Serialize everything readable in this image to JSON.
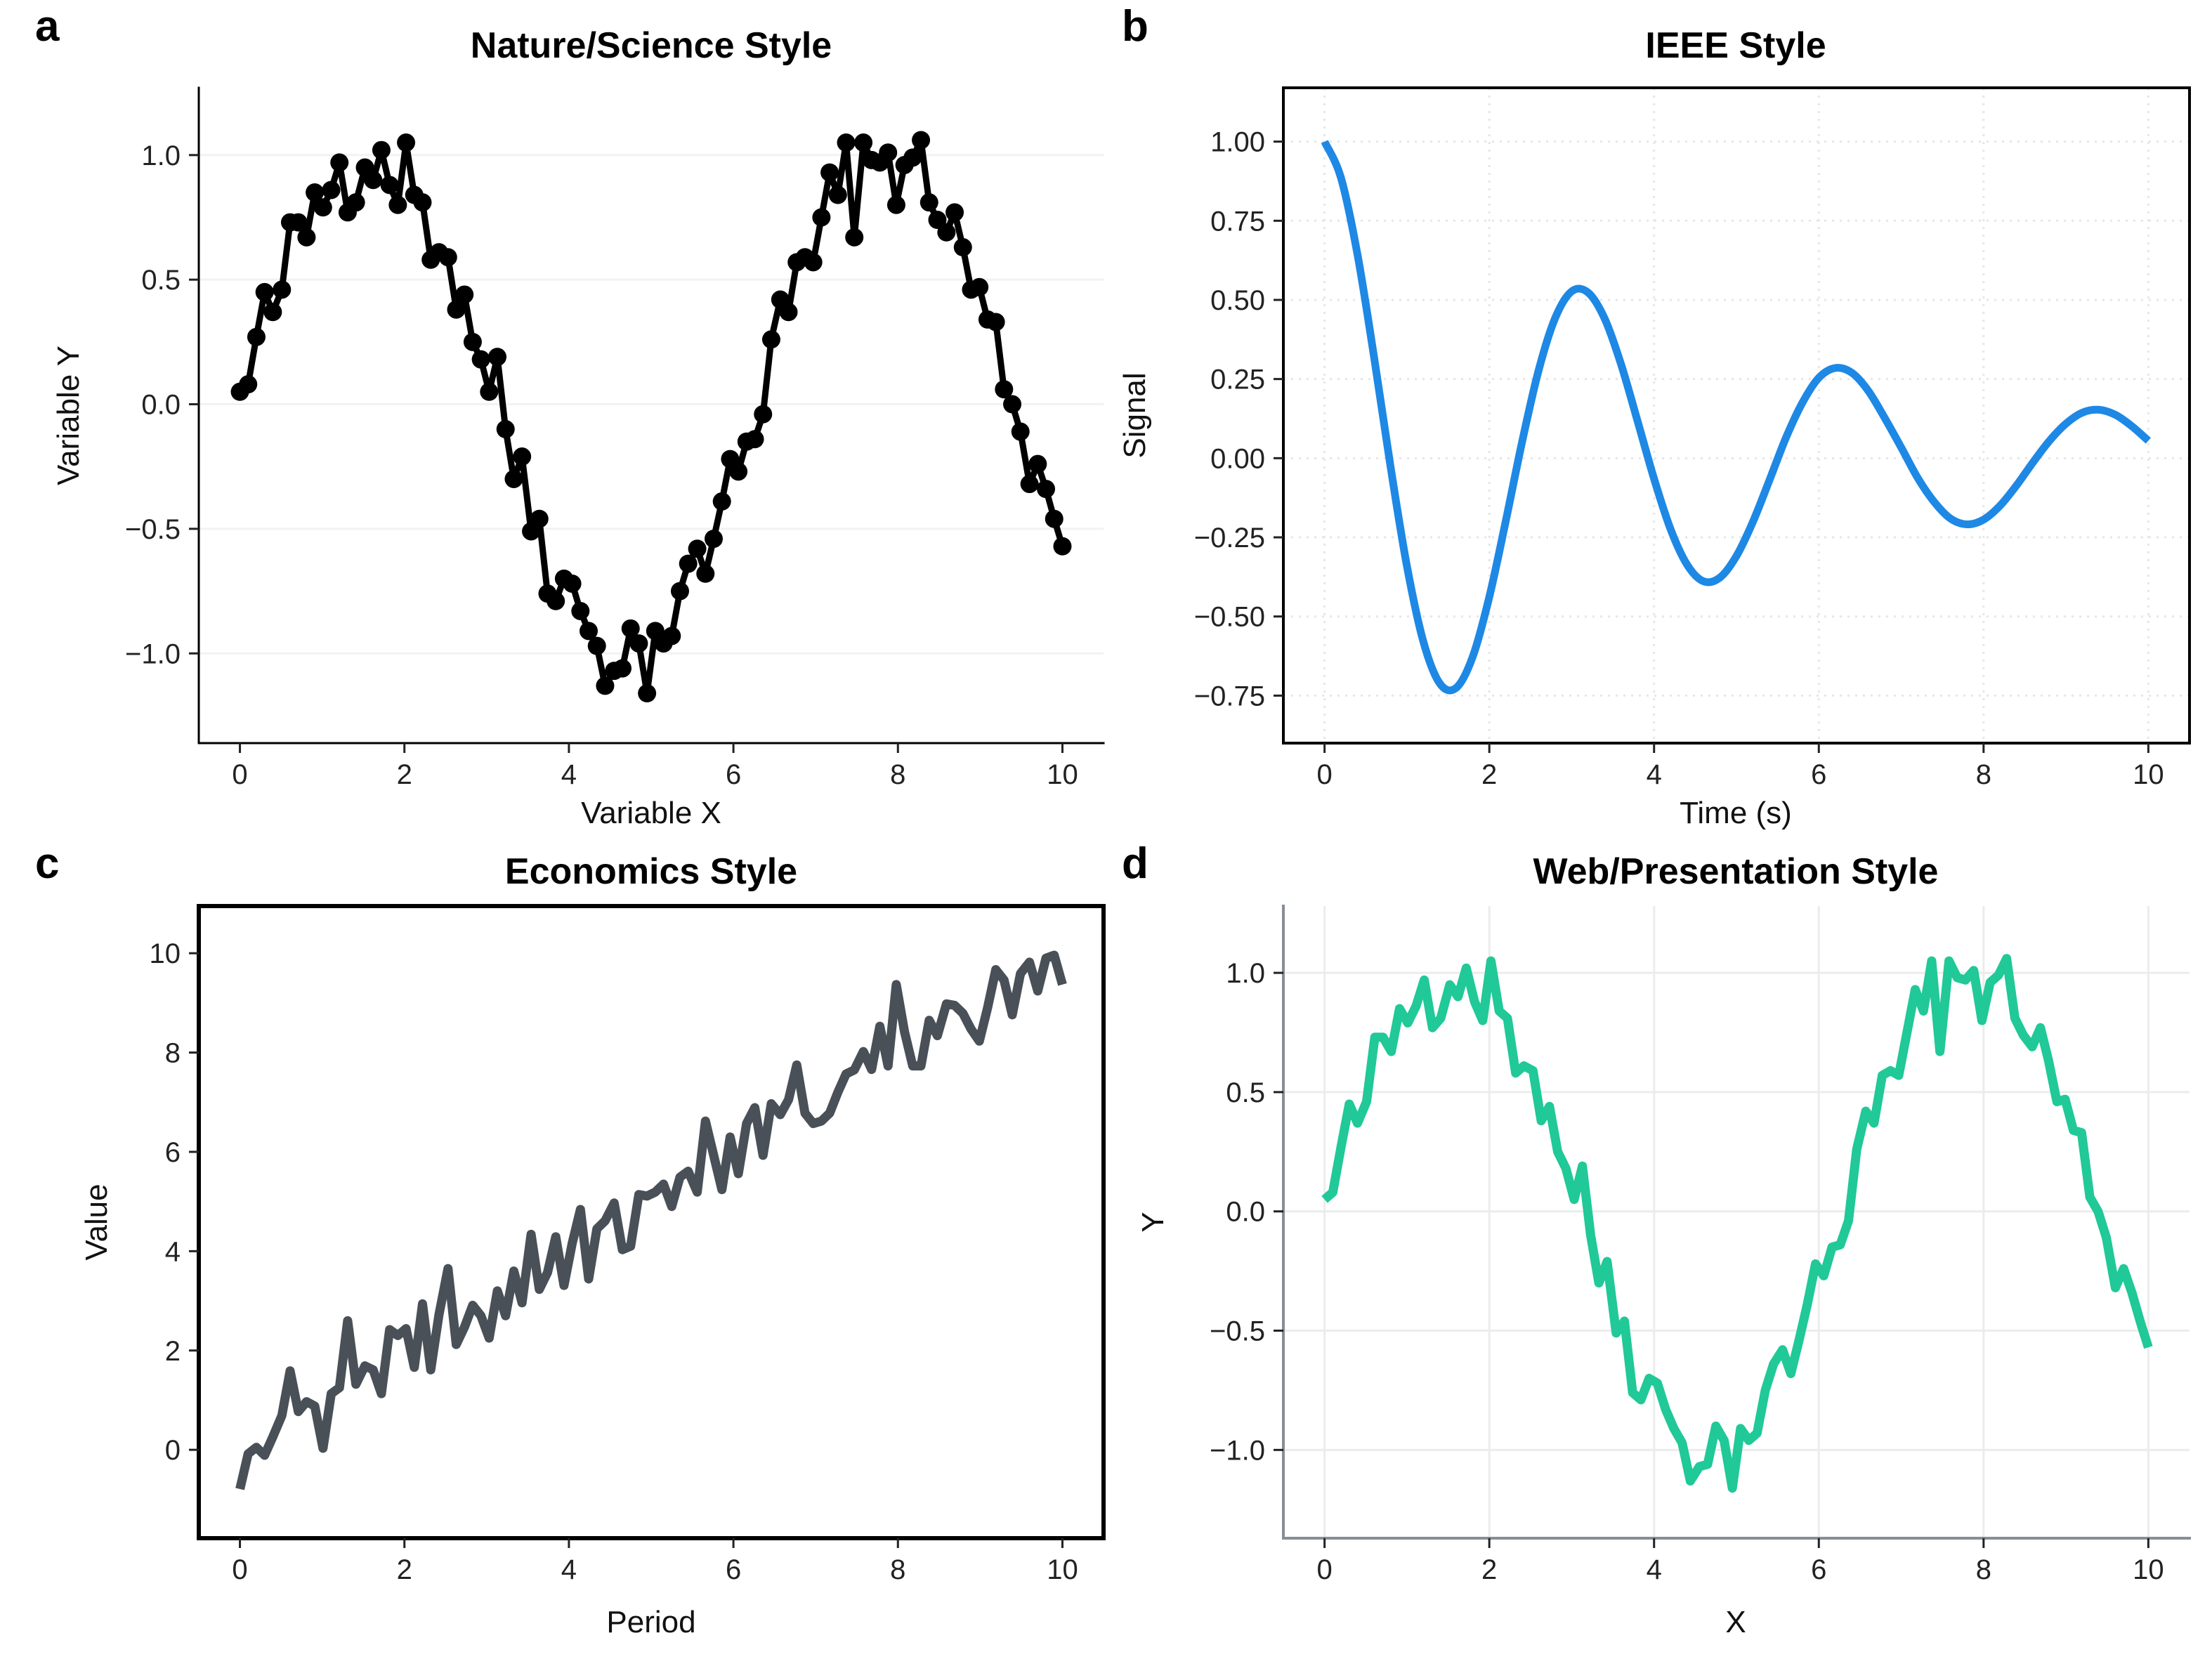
{
  "chart_data": [
    {
      "panel_letter": "a",
      "type": "line",
      "title": "Nature/Science Style",
      "xlabel": "Variable X",
      "ylabel": "Variable Y",
      "xlim": [
        -0.5,
        10.5
      ],
      "ylim": [
        -1.36,
        1.27
      ],
      "xticks": [
        0,
        2,
        4,
        6,
        8,
        10
      ],
      "xtick_labels": [
        "0",
        "2",
        "4",
        "6",
        "8",
        "10"
      ],
      "yticks": [
        -1.0,
        -0.5,
        0.0,
        0.5,
        1.0
      ],
      "ytick_labels": [
        "−1.0",
        "−0.5",
        "0.0",
        "0.5",
        "1.0"
      ],
      "grid": "horizontal, faint",
      "markers": true,
      "color": "#000000",
      "x": [
        0,
        0.1,
        0.2,
        0.3,
        0.4,
        0.51,
        0.61,
        0.71,
        0.81,
        0.91,
        1.01,
        1.11,
        1.21,
        1.31,
        1.41,
        1.52,
        1.62,
        1.72,
        1.82,
        1.92,
        2.02,
        2.12,
        2.22,
        2.32,
        2.42,
        2.53,
        2.63,
        2.73,
        2.83,
        2.93,
        3.03,
        3.13,
        3.23,
        3.33,
        3.43,
        3.54,
        3.64,
        3.74,
        3.84,
        3.94,
        4.04,
        4.14,
        4.24,
        4.34,
        4.44,
        4.55,
        4.65,
        4.75,
        4.85,
        4.95,
        5.05,
        5.15,
        5.25,
        5.35,
        5.45,
        5.56,
        5.66,
        5.76,
        5.86,
        5.96,
        6.06,
        6.16,
        6.26,
        6.36,
        6.46,
        6.57,
        6.67,
        6.77,
        6.87,
        6.97,
        7.07,
        7.17,
        7.27,
        7.37,
        7.47,
        7.58,
        7.68,
        7.78,
        7.88,
        7.98,
        8.08,
        8.18,
        8.28,
        8.38,
        8.48,
        8.59,
        8.69,
        8.79,
        8.89,
        8.99,
        9.09,
        9.19,
        9.29,
        9.39,
        9.49,
        9.6,
        9.7,
        9.8,
        9.9,
        10.0
      ],
      "y": [
        0.05,
        0.08,
        0.27,
        0.45,
        0.37,
        0.46,
        0.73,
        0.73,
        0.67,
        0.85,
        0.79,
        0.86,
        0.97,
        0.77,
        0.81,
        0.95,
        0.9,
        1.02,
        0.88,
        0.8,
        1.05,
        0.84,
        0.81,
        0.58,
        0.61,
        0.59,
        0.38,
        0.44,
        0.25,
        0.18,
        0.05,
        0.19,
        -0.1,
        -0.3,
        -0.21,
        -0.51,
        -0.46,
        -0.76,
        -0.79,
        -0.7,
        -0.72,
        -0.83,
        -0.91,
        -0.97,
        -1.13,
        -1.07,
        -1.06,
        -0.9,
        -0.96,
        -1.16,
        -0.91,
        -0.96,
        -0.93,
        -0.75,
        -0.64,
        -0.58,
        -0.68,
        -0.54,
        -0.39,
        -0.22,
        -0.27,
        -0.15,
        -0.14,
        -0.04,
        0.26,
        0.42,
        0.37,
        0.57,
        0.59,
        0.57,
        0.75,
        0.93,
        0.84,
        1.05,
        0.67,
        1.05,
        0.98,
        0.97,
        1.01,
        0.8,
        0.96,
        0.99,
        1.06,
        0.81,
        0.74,
        0.69,
        0.77,
        0.63,
        0.46,
        0.47,
        0.34,
        0.33,
        0.06,
        0.0,
        -0.11,
        -0.32,
        -0.24,
        -0.34,
        -0.46,
        -0.57
      ]
    },
    {
      "panel_letter": "b",
      "type": "line",
      "title": "IEEE Style",
      "xlabel": "Time (s)",
      "ylabel": "Signal",
      "xlim": [
        -0.5,
        10.5
      ],
      "ylim": [
        -0.9,
        1.17
      ],
      "xticks": [
        0,
        2,
        4,
        6,
        8,
        10
      ],
      "xtick_labels": [
        "0",
        "2",
        "4",
        "6",
        "8",
        "10"
      ],
      "yticks": [
        -0.75,
        -0.5,
        -0.25,
        0.0,
        0.25,
        0.5,
        0.75,
        1.0
      ],
      "ytick_labels": [
        "−0.75",
        "−0.50",
        "−0.25",
        "0.00",
        "0.25",
        "0.50",
        "0.75",
        "1.00"
      ],
      "grid": "both, dotted",
      "markers": false,
      "color": "#1E88E5",
      "x": [
        0,
        0.2,
        0.4,
        0.6,
        0.8,
        1.0,
        1.2,
        1.4,
        1.6,
        1.8,
        2.0,
        2.2,
        2.4,
        2.6,
        2.8,
        3.0,
        3.2,
        3.4,
        3.6,
        3.8,
        4.0,
        4.2,
        4.4,
        4.6,
        4.8,
        5.0,
        5.2,
        5.4,
        5.6,
        5.8,
        6.0,
        6.2,
        6.4,
        6.6,
        6.8,
        7.0,
        7.2,
        7.4,
        7.6,
        7.8,
        8.0,
        8.2,
        8.4,
        8.6,
        8.8,
        9.0,
        9.2,
        9.4,
        9.6,
        9.8,
        10.0
      ],
      "y": [
        1.0,
        0.885,
        0.643,
        0.321,
        -0.025,
        -0.341,
        -0.58,
        -0.712,
        -0.725,
        -0.626,
        -0.438,
        -0.198,
        0.054,
        0.279,
        0.443,
        0.527,
        0.523,
        0.441,
        0.296,
        0.117,
        -0.065,
        -0.224,
        -0.336,
        -0.389,
        -0.377,
        -0.309,
        -0.201,
        -0.07,
        0.064,
        0.175,
        0.254,
        0.285,
        0.27,
        0.213,
        0.127,
        0.034,
        -0.062,
        -0.138,
        -0.191,
        -0.209,
        -0.194,
        -0.15,
        -0.086,
        -0.013,
        0.055,
        0.109,
        0.144,
        0.153,
        0.137,
        0.101,
        0.055
      ]
    },
    {
      "panel_letter": "c",
      "type": "line",
      "title": "Economics Style",
      "xlabel": "Period",
      "ylabel": "Value",
      "xlim": [
        -0.5,
        10.5
      ],
      "ylim": [
        -1.78,
        10.95
      ],
      "xticks": [
        0,
        2,
        4,
        6,
        8,
        10
      ],
      "xtick_labels": [
        "0",
        "2",
        "4",
        "6",
        "8",
        "10"
      ],
      "yticks": [
        0,
        2,
        4,
        6,
        8,
        10
      ],
      "ytick_labels": [
        "0",
        "2",
        "4",
        "6",
        "8",
        "10"
      ],
      "grid": "none",
      "markers": false,
      "color": "#495057",
      "x": [
        0,
        0.1,
        0.2,
        0.3,
        0.4,
        0.51,
        0.61,
        0.71,
        0.81,
        0.91,
        1.01,
        1.11,
        1.21,
        1.31,
        1.41,
        1.52,
        1.62,
        1.72,
        1.82,
        1.92,
        2.02,
        2.12,
        2.22,
        2.32,
        2.42,
        2.53,
        2.63,
        2.73,
        2.83,
        2.93,
        3.03,
        3.13,
        3.23,
        3.33,
        3.43,
        3.54,
        3.64,
        3.74,
        3.84,
        3.94,
        4.04,
        4.14,
        4.24,
        4.34,
        4.44,
        4.55,
        4.65,
        4.75,
        4.85,
        4.95,
        5.05,
        5.15,
        5.25,
        5.35,
        5.45,
        5.56,
        5.66,
        5.76,
        5.86,
        5.96,
        6.06,
        6.16,
        6.26,
        6.36,
        6.46,
        6.57,
        6.67,
        6.77,
        6.87,
        6.97,
        7.07,
        7.17,
        7.27,
        7.37,
        7.47,
        7.58,
        7.68,
        7.78,
        7.88,
        7.98,
        8.08,
        8.18,
        8.28,
        8.38,
        8.48,
        8.59,
        8.69,
        8.79,
        8.89,
        8.99,
        9.09,
        9.19,
        9.29,
        9.39,
        9.49,
        9.6,
        9.7,
        9.8,
        9.9,
        10.0
      ],
      "y": [
        -0.79,
        -0.08,
        0.05,
        -0.11,
        0.26,
        0.69,
        1.59,
        0.77,
        0.97,
        0.88,
        0.03,
        1.13,
        1.25,
        2.6,
        1.32,
        1.69,
        1.61,
        1.13,
        2.42,
        2.3,
        2.44,
        1.66,
        2.94,
        1.61,
        2.72,
        3.65,
        2.12,
        2.47,
        2.91,
        2.7,
        2.25,
        3.2,
        2.7,
        3.6,
        2.96,
        4.34,
        3.23,
        3.57,
        4.29,
        3.31,
        4.16,
        4.84,
        3.44,
        4.45,
        4.61,
        4.97,
        4.03,
        4.1,
        5.14,
        5.11,
        5.19,
        5.35,
        4.9,
        5.49,
        5.61,
        5.19,
        6.62,
        5.93,
        5.24,
        6.3,
        5.56,
        6.57,
        6.89,
        5.93,
        6.97,
        6.75,
        7.05,
        7.75,
        6.78,
        6.57,
        6.62,
        6.78,
        7.2,
        7.57,
        7.65,
        8.02,
        7.66,
        8.53,
        7.73,
        9.37,
        8.42,
        7.73,
        7.73,
        8.65,
        8.34,
        8.98,
        8.95,
        8.79,
        8.47,
        8.23,
        8.9,
        9.67,
        9.46,
        8.76,
        9.59,
        9.82,
        9.24,
        9.9,
        9.96,
        9.37
      ]
    },
    {
      "panel_letter": "d",
      "type": "line",
      "title": "Web/Presentation Style",
      "xlabel": "X",
      "ylabel": "Y",
      "xlim": [
        -0.5,
        10.5
      ],
      "ylim": [
        -1.37,
        1.28
      ],
      "xticks": [
        0,
        2,
        4,
        6,
        8,
        10
      ],
      "xtick_labels": [
        "0",
        "2",
        "4",
        "6",
        "8",
        "10"
      ],
      "yticks": [
        -1.0,
        -0.5,
        0.0,
        0.5,
        1.0
      ],
      "ytick_labels": [
        "−1.0",
        "−0.5",
        "0.0",
        "0.5",
        "1.0"
      ],
      "grid": "both, light",
      "markers": false,
      "color": "#20C997",
      "x": [
        0,
        0.1,
        0.2,
        0.3,
        0.4,
        0.51,
        0.61,
        0.71,
        0.81,
        0.91,
        1.01,
        1.11,
        1.21,
        1.31,
        1.41,
        1.52,
        1.62,
        1.72,
        1.82,
        1.92,
        2.02,
        2.12,
        2.22,
        2.32,
        2.42,
        2.53,
        2.63,
        2.73,
        2.83,
        2.93,
        3.03,
        3.13,
        3.23,
        3.33,
        3.43,
        3.54,
        3.64,
        3.74,
        3.84,
        3.94,
        4.04,
        4.14,
        4.24,
        4.34,
        4.44,
        4.55,
        4.65,
        4.75,
        4.85,
        4.95,
        5.05,
        5.15,
        5.25,
        5.35,
        5.45,
        5.56,
        5.66,
        5.76,
        5.86,
        5.96,
        6.06,
        6.16,
        6.26,
        6.36,
        6.46,
        6.57,
        6.67,
        6.77,
        6.87,
        6.97,
        7.07,
        7.17,
        7.27,
        7.37,
        7.47,
        7.58,
        7.68,
        7.78,
        7.88,
        7.98,
        8.08,
        8.18,
        8.28,
        8.38,
        8.48,
        8.59,
        8.69,
        8.79,
        8.89,
        8.99,
        9.09,
        9.19,
        9.29,
        9.39,
        9.49,
        9.6,
        9.7,
        9.8,
        9.9,
        10.0
      ],
      "y": [
        0.05,
        0.08,
        0.27,
        0.45,
        0.37,
        0.46,
        0.73,
        0.73,
        0.67,
        0.85,
        0.79,
        0.86,
        0.97,
        0.77,
        0.81,
        0.95,
        0.9,
        1.02,
        0.88,
        0.8,
        1.05,
        0.84,
        0.81,
        0.58,
        0.61,
        0.59,
        0.38,
        0.44,
        0.25,
        0.18,
        0.05,
        0.19,
        -0.1,
        -0.3,
        -0.21,
        -0.51,
        -0.46,
        -0.76,
        -0.79,
        -0.7,
        -0.72,
        -0.83,
        -0.91,
        -0.97,
        -1.13,
        -1.07,
        -1.06,
        -0.9,
        -0.96,
        -1.16,
        -0.91,
        -0.96,
        -0.93,
        -0.75,
        -0.64,
        -0.58,
        -0.68,
        -0.54,
        -0.39,
        -0.22,
        -0.27,
        -0.15,
        -0.14,
        -0.04,
        0.26,
        0.42,
        0.37,
        0.57,
        0.59,
        0.57,
        0.75,
        0.93,
        0.84,
        1.05,
        0.67,
        1.05,
        0.98,
        0.97,
        1.01,
        0.8,
        0.96,
        0.99,
        1.06,
        0.81,
        0.74,
        0.69,
        0.77,
        0.63,
        0.46,
        0.47,
        0.34,
        0.33,
        0.06,
        0.0,
        -0.11,
        -0.32,
        -0.24,
        -0.34,
        -0.46,
        -0.57
      ]
    }
  ]
}
